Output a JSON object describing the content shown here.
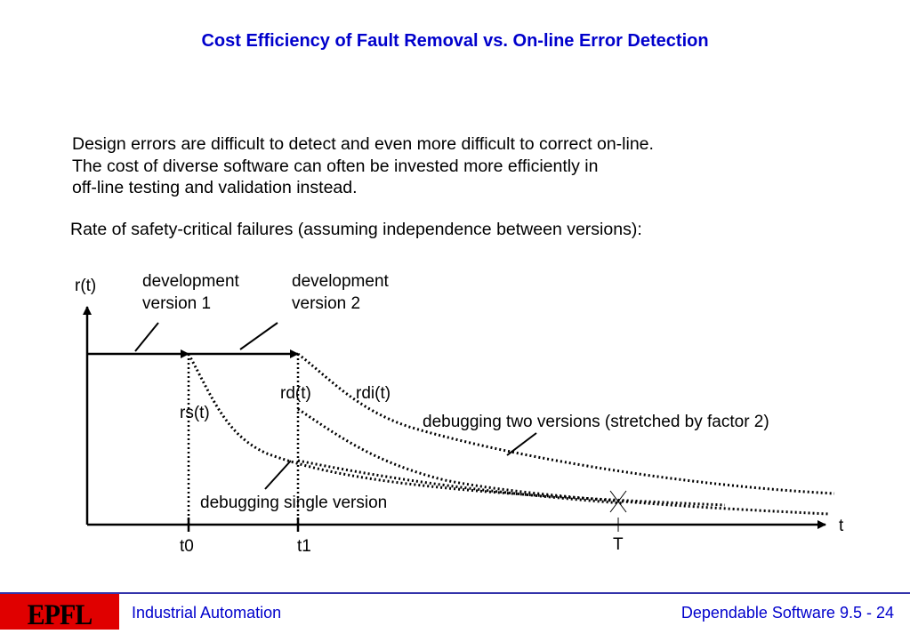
{
  "title": "Cost Efficiency of Fault Removal vs. On-line Error Detection",
  "paragraph": [
    "Design errors are difficult to detect and even more difficult to correct on-line.",
    "The cost of diverse software can often be invested more efficiently in",
    "off-line testing and validation instead."
  ],
  "rate_heading": "Rate of safety-critical failures (assuming independence between versions):",
  "diagram": {
    "y_axis_label": "r(t)",
    "x_axis_label": "t",
    "dev_v1": [
      "development",
      "version 1"
    ],
    "dev_v2": [
      "development",
      "version 2"
    ],
    "rd_label": "rd(t)",
    "rdi_label": "rdi(t)",
    "rs_label": "rs(t)",
    "two_versions_label": "debugging two versions (stretched by factor 2)",
    "single_version_label": "debugging single version",
    "ticks": [
      "t0",
      "t1",
      "T"
    ]
  },
  "footer": {
    "logo_text": "EPFL",
    "left": "Industrial Automation",
    "right": "Dependable Software 9.5 - 24"
  },
  "colors": {
    "title": "#0000cc",
    "footer_text": "#0000cc",
    "logo_bg": "#e00000"
  }
}
